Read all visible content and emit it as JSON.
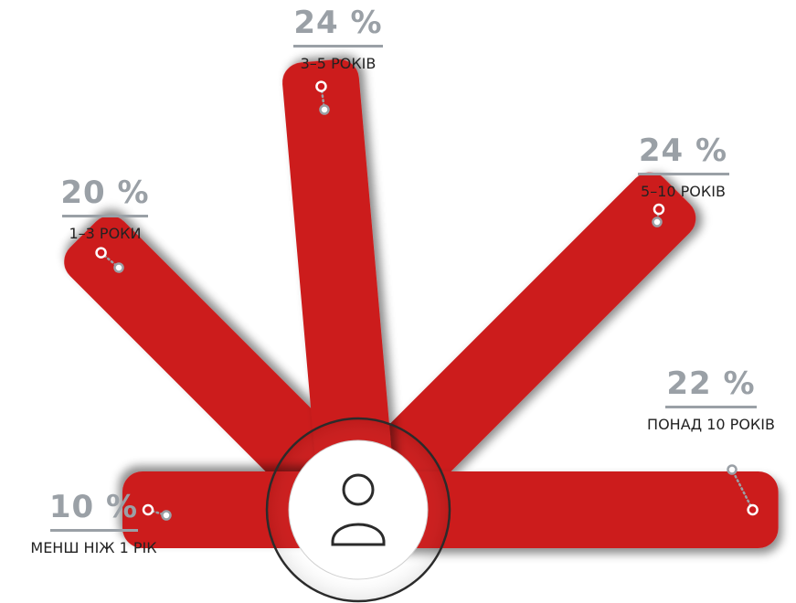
{
  "colors": {
    "bar": "#cc1a1e",
    "bar_shadow": "#1a1a1a",
    "connector": "#9aa0a6",
    "text_value": "#9aa0a6",
    "text_label": "#222222"
  },
  "icons": {
    "center": "person-icon"
  },
  "chart_data": {
    "type": "bar",
    "categories": [
      "МЕНШ НІЖ 1 РІК",
      "1–3 РОКИ",
      "3–5 РОКІВ",
      "5–10 РОКІВ",
      "ПОНАД 10 РОКІВ"
    ],
    "values": [
      10,
      20,
      24,
      24,
      22
    ],
    "value_labels": [
      "10 %",
      "20 %",
      "24 %",
      "24 %",
      "22 %"
    ],
    "unit": "%",
    "layout": "radial fan",
    "title": "",
    "xlabel": "",
    "ylabel": ""
  }
}
